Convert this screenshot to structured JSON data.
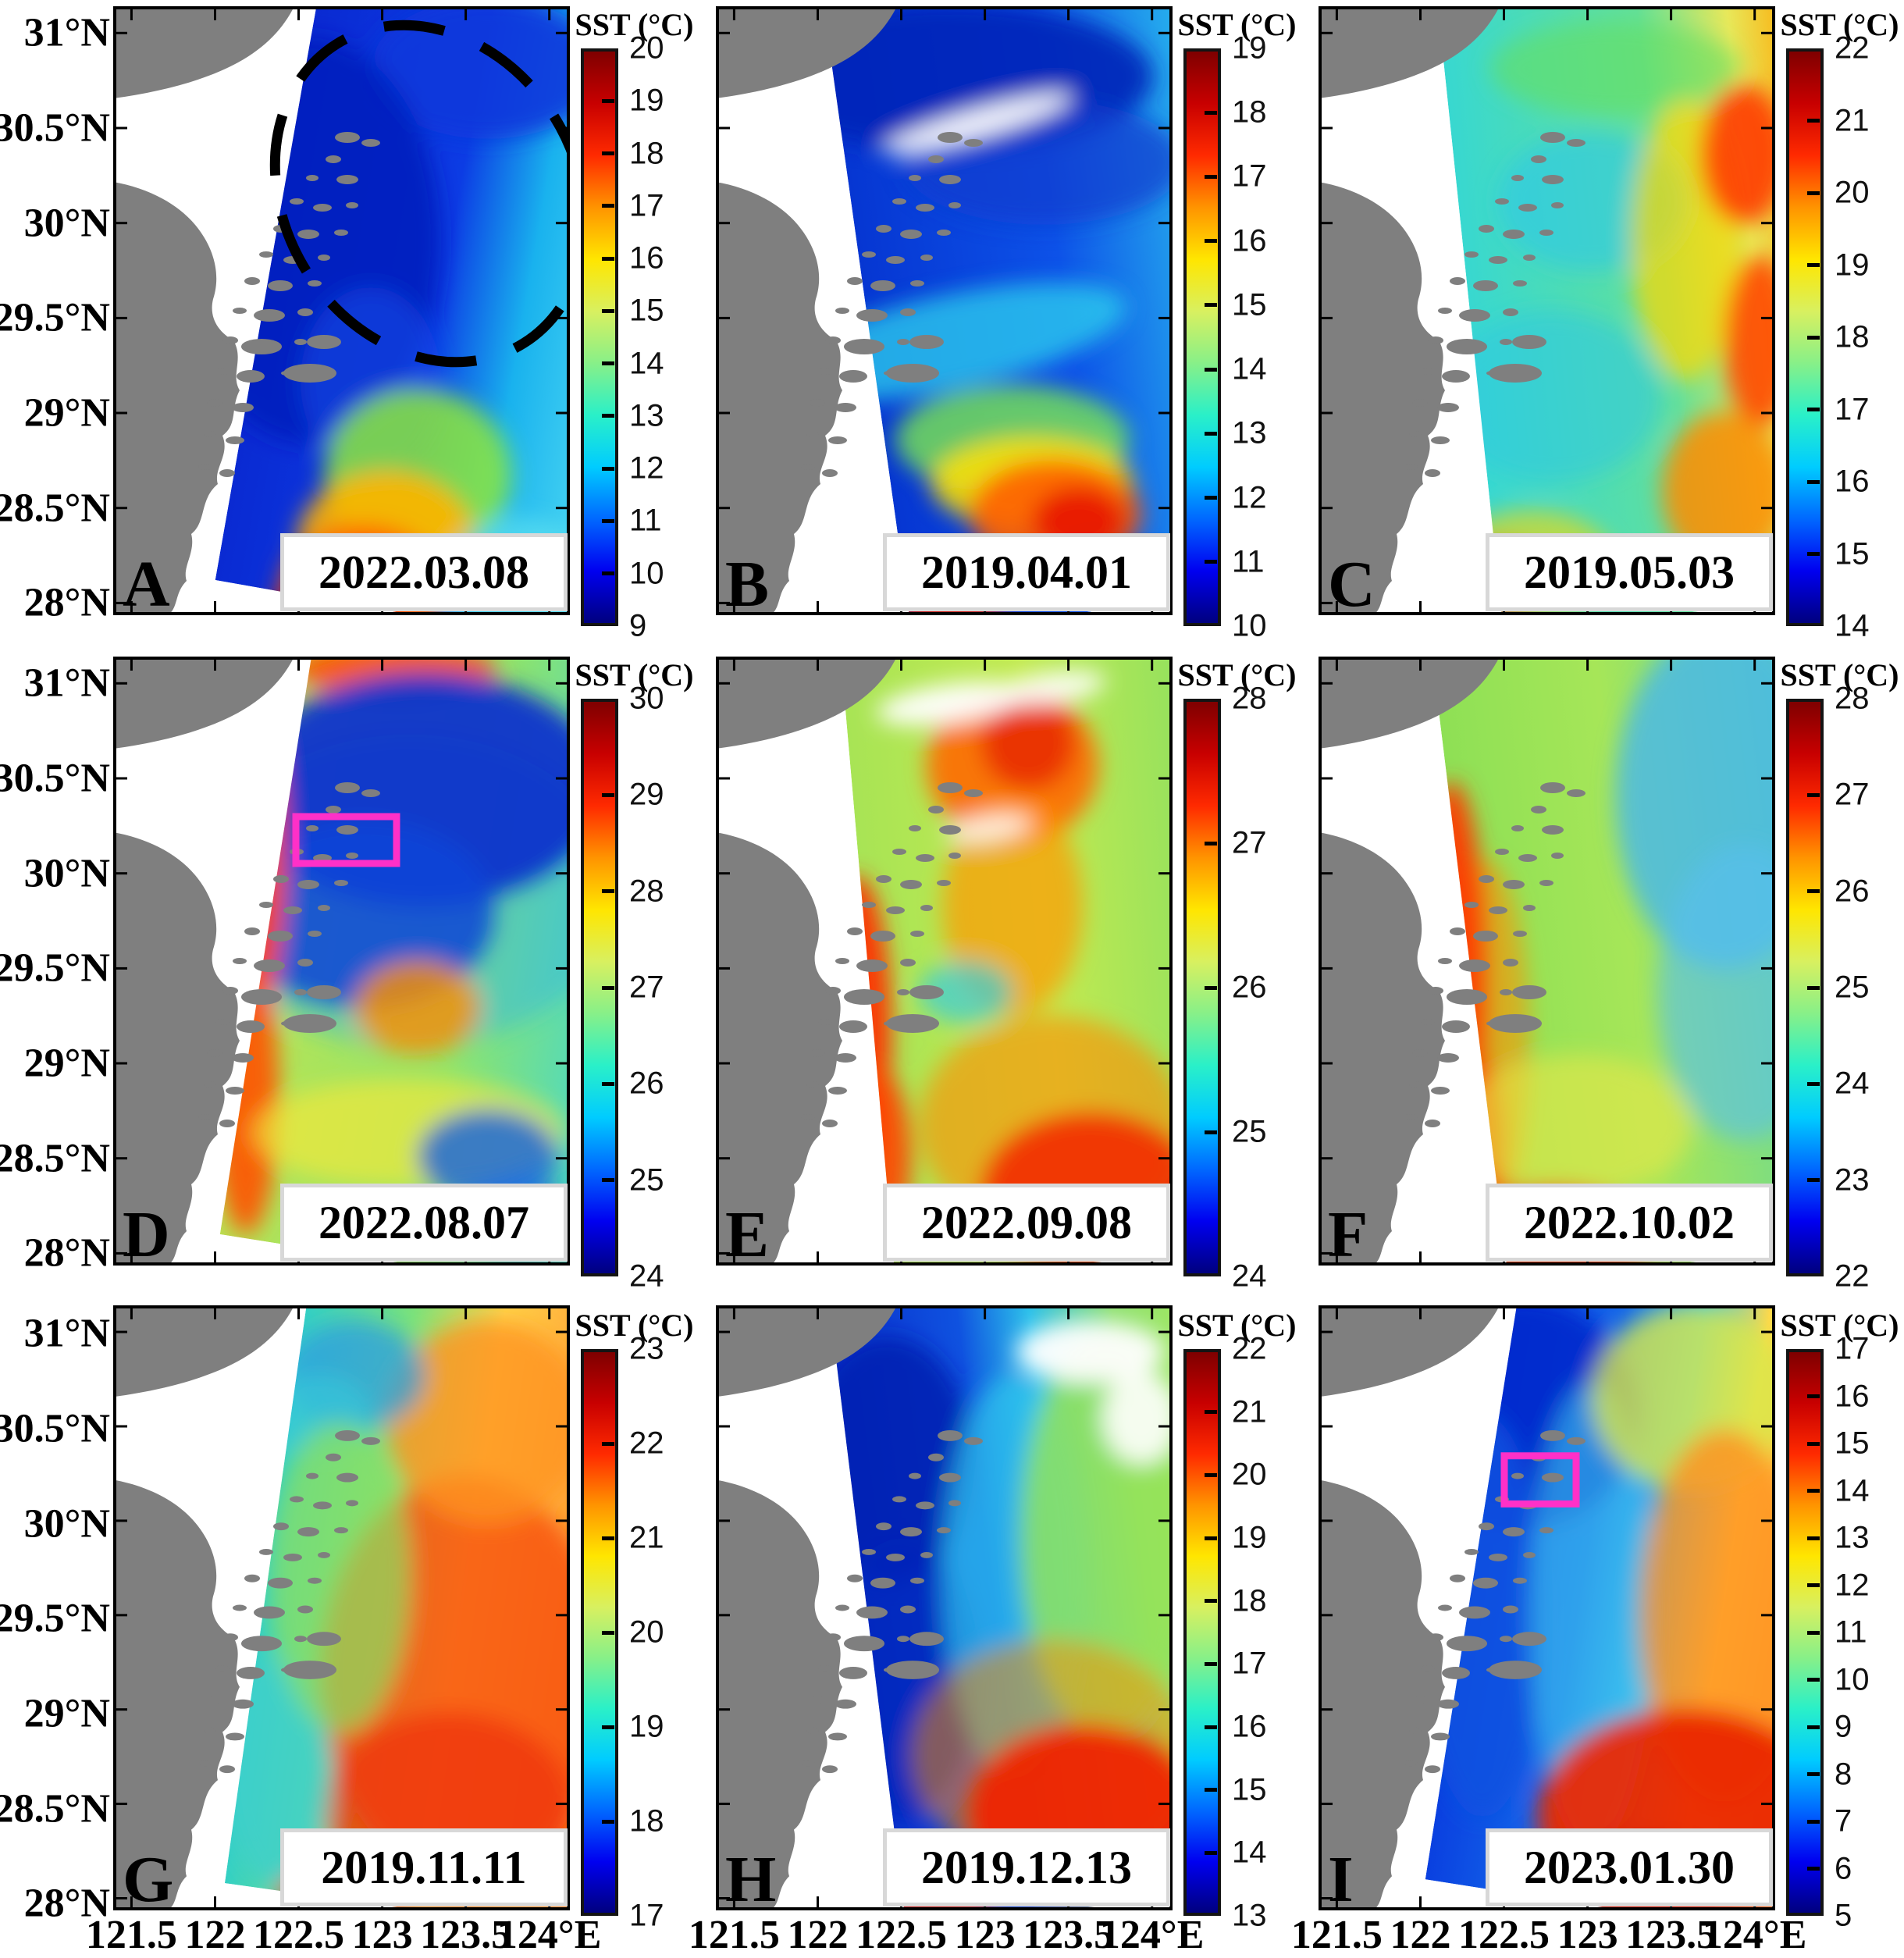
{
  "figure": {
    "colorbar_title": "SST (°C)",
    "land_color": "#7f7f7f",
    "annotation_rect_color": "#ff30c8",
    "annotation_ellipse_color": "#000000",
    "jet_colormap_top_to_bottom": [
      "#7f0000",
      "#c80000",
      "#ff2a00",
      "#ff9400",
      "#ffe600",
      "#d8f060",
      "#88f088",
      "#2af0c8",
      "#00ccff",
      "#0068ff",
      "#0000f0",
      "#00007f"
    ],
    "y_axis_ticks": [
      "31°N",
      "30.5°N",
      "30°N",
      "29.5°N",
      "29°N",
      "28.5°N",
      "28°N"
    ],
    "x_axis_ticks": [
      "121.5",
      "122",
      "122.5",
      "123",
      "123.5",
      "124°E"
    ],
    "panels": [
      {
        "letter": "A",
        "date": "2022.03.08",
        "colorbar_max": 20,
        "colorbar_min": 9,
        "colorbar_ticks": [
          "20",
          "19",
          "18",
          "17",
          "16",
          "15",
          "14",
          "13",
          "12",
          "11",
          "10",
          "9"
        ],
        "annotation": "dashed-ellipse"
      },
      {
        "letter": "B",
        "date": "2019.04.01",
        "colorbar_max": 19,
        "colorbar_min": 10,
        "colorbar_ticks": [
          "19",
          "18",
          "17",
          "16",
          "15",
          "14",
          "13",
          "12",
          "11",
          "10"
        ],
        "annotation": null
      },
      {
        "letter": "C",
        "date": "2019.05.03",
        "colorbar_max": 22,
        "colorbar_min": 14,
        "colorbar_ticks": [
          "22",
          "21",
          "20",
          "19",
          "18",
          "17",
          "16",
          "15",
          "14"
        ],
        "annotation": null
      },
      {
        "letter": "D",
        "date": "2022.08.07",
        "colorbar_max": 30,
        "colorbar_min": 24,
        "colorbar_ticks": [
          "30",
          "29",
          "28",
          "27",
          "26",
          "25",
          "24"
        ],
        "annotation": "highlight-rectangle"
      },
      {
        "letter": "E",
        "date": "2022.09.08",
        "colorbar_max": 28,
        "colorbar_min": 24,
        "colorbar_ticks": [
          "28",
          "27",
          "26",
          "25",
          "24"
        ],
        "annotation": null
      },
      {
        "letter": "F",
        "date": "2022.10.02",
        "colorbar_max": 28,
        "colorbar_min": 22,
        "colorbar_ticks": [
          "28",
          "27",
          "26",
          "25",
          "24",
          "23",
          "22"
        ],
        "annotation": null
      },
      {
        "letter": "G",
        "date": "2019.11.11",
        "colorbar_max": 23,
        "colorbar_min": 17,
        "colorbar_ticks": [
          "23",
          "22",
          "21",
          "20",
          "19",
          "18",
          "17"
        ],
        "annotation": null
      },
      {
        "letter": "H",
        "date": "2019.12.13",
        "colorbar_max": 22,
        "colorbar_min": 13,
        "colorbar_ticks": [
          "22",
          "21",
          "20",
          "19",
          "18",
          "17",
          "16",
          "15",
          "14",
          "13"
        ],
        "annotation": null
      },
      {
        "letter": "I",
        "date": "2023.01.30",
        "colorbar_max": 17,
        "colorbar_min": 5,
        "colorbar_ticks": [
          "17",
          "16",
          "15",
          "14",
          "13",
          "12",
          "11",
          "10",
          "9",
          "8",
          "7",
          "6",
          "5"
        ],
        "annotation": "highlight-rectangle"
      }
    ]
  }
}
